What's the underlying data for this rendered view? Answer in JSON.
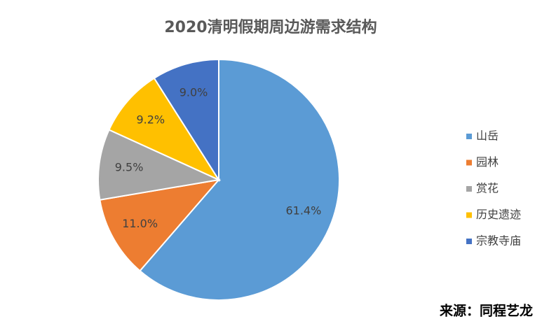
{
  "chart_data": {
    "type": "pie",
    "title": "2020清明假期周边游需求结构",
    "categories": [
      "山岳",
      "园林",
      "赏花",
      "历史遗迹",
      "宗教寺庙"
    ],
    "values": [
      61.4,
      11.0,
      9.5,
      9.2,
      9.0
    ],
    "value_labels": [
      "61.4%",
      "11.0%",
      "9.5%",
      "9.2%",
      "9.0%"
    ],
    "colors": [
      "#5b9bd5",
      "#ed7d31",
      "#a5a5a5",
      "#ffc000",
      "#4472c4"
    ],
    "legend": "right",
    "source": "来源：同程艺龙"
  }
}
